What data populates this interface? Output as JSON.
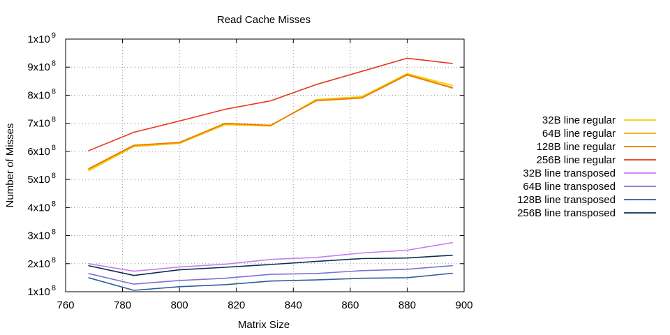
{
  "chart_data": {
    "type": "line",
    "title": "Read Cache Misses",
    "xlabel": "Matrix Size",
    "ylabel": "Number of Misses",
    "xlim": [
      760,
      900
    ],
    "ylim": [
      100000000,
      1000000000
    ],
    "x_ticks": [
      "760",
      "780",
      "800",
      "820",
      "840",
      "860",
      "880",
      "900"
    ],
    "y_ticks": [
      {
        "mant": "1x10",
        "exp": "8"
      },
      {
        "mant": "2x10",
        "exp": "8"
      },
      {
        "mant": "3x10",
        "exp": "8"
      },
      {
        "mant": "4x10",
        "exp": "8"
      },
      {
        "mant": "5x10",
        "exp": "8"
      },
      {
        "mant": "6x10",
        "exp": "8"
      },
      {
        "mant": "7x10",
        "exp": "8"
      },
      {
        "mant": "8x10",
        "exp": "8"
      },
      {
        "mant": "9x10",
        "exp": "8"
      },
      {
        "mant": "1x10",
        "exp": "9"
      }
    ],
    "grid": true,
    "legend_position": "right",
    "x": [
      768,
      784,
      800,
      816,
      832,
      848,
      864,
      880,
      896
    ],
    "series": [
      {
        "name": "32B line regular",
        "color": "#f0d000",
        "values": [
          530000000,
          617000000,
          628000000,
          695000000,
          690000000,
          785000000,
          795000000,
          877000000,
          835000000
        ]
      },
      {
        "name": "64B line regular",
        "color": "#f5a800",
        "values": [
          535000000,
          620000000,
          630000000,
          698000000,
          692000000,
          782000000,
          792000000,
          875000000,
          828000000
        ]
      },
      {
        "name": "128B line regular",
        "color": "#f07800",
        "values": [
          538000000,
          622000000,
          632000000,
          700000000,
          693000000,
          780000000,
          790000000,
          872000000,
          825000000
        ]
      },
      {
        "name": "256B line regular",
        "color": "#e8341c",
        "values": [
          602000000,
          668000000,
          708000000,
          750000000,
          780000000,
          838000000,
          885000000,
          932000000,
          913000000
        ]
      },
      {
        "name": "32B line transposed",
        "color": "#c77df0",
        "values": [
          200000000,
          173000000,
          188000000,
          198000000,
          215000000,
          222000000,
          238000000,
          248000000,
          275000000
        ]
      },
      {
        "name": "64B line transposed",
        "color": "#7a72d4",
        "values": [
          165000000,
          127000000,
          140000000,
          148000000,
          162000000,
          165000000,
          175000000,
          180000000,
          193000000
        ]
      },
      {
        "name": "128B line transposed",
        "color": "#2e5e98",
        "values": [
          150000000,
          105000000,
          118000000,
          125000000,
          138000000,
          142000000,
          148000000,
          150000000,
          166000000
        ]
      },
      {
        "name": "256B line transposed",
        "color": "#0b3050",
        "values": [
          193000000,
          158000000,
          178000000,
          187000000,
          197000000,
          208000000,
          218000000,
          220000000,
          230000000
        ]
      }
    ]
  }
}
